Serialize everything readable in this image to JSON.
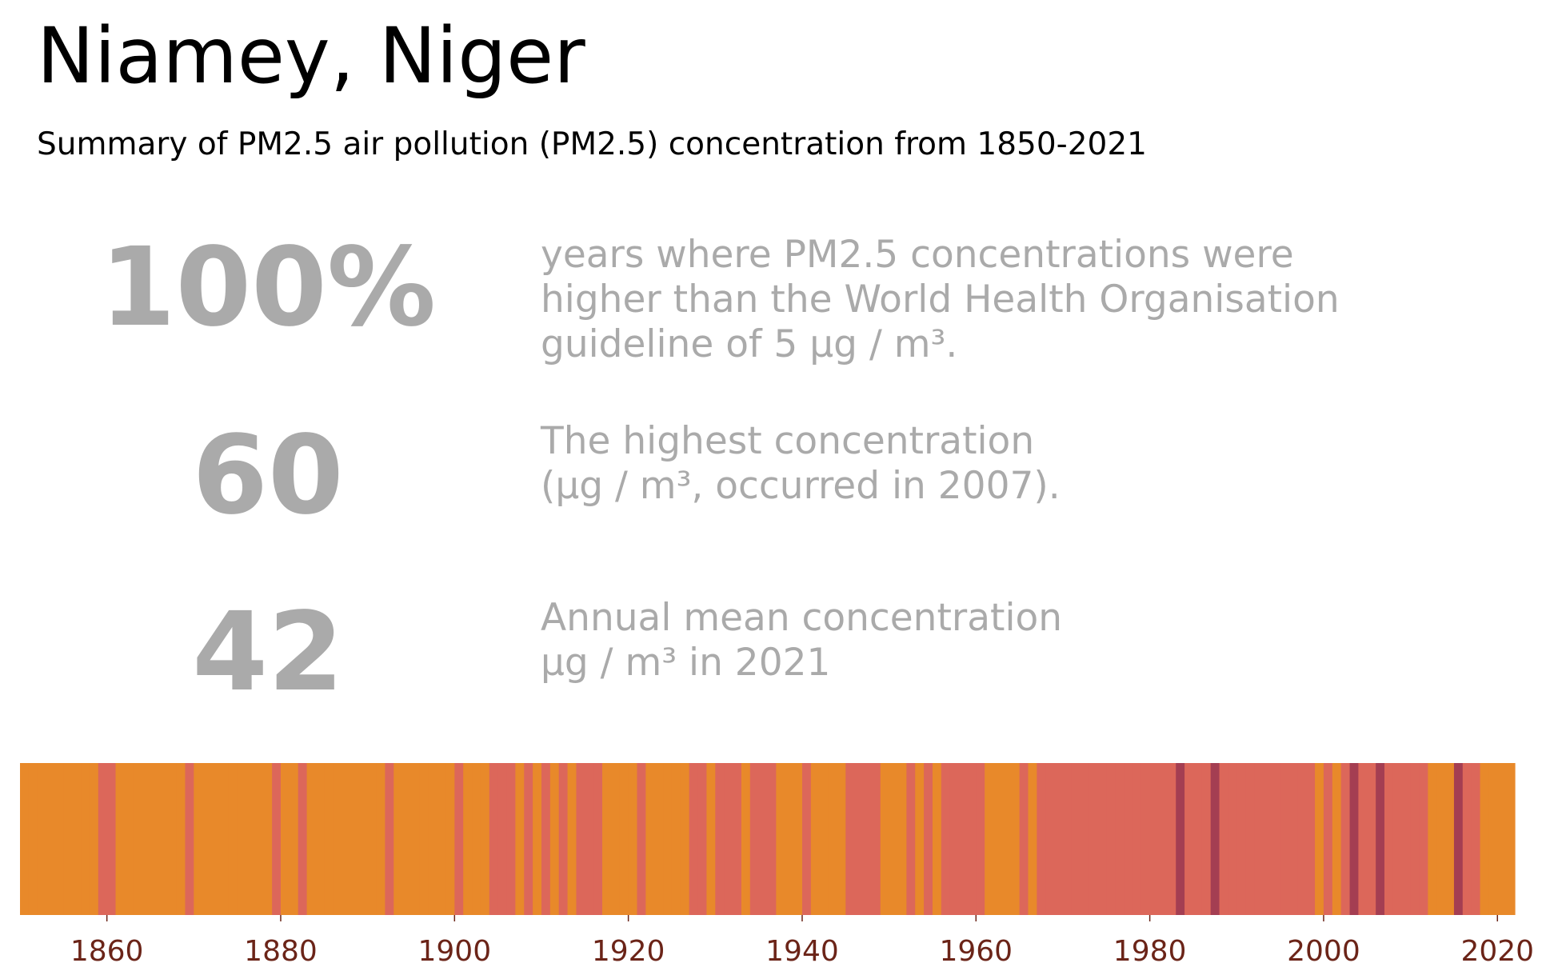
{
  "header": {
    "title": "Niamey, Niger",
    "subtitle": "Summary of PM2.5 air pollution (PM2.5) concentration from 1850-2021"
  },
  "stats": [
    {
      "value": "100%",
      "lines": [
        "years where PM2.5 concentrations were",
        "higher than the World Health Organisation",
        "guideline of 5 μg / m³."
      ]
    },
    {
      "value": "60",
      "lines": [
        "The highest concentration",
        "(μg / m³, occurred in 2007)."
      ]
    },
    {
      "value": "42",
      "lines": [
        "Annual mean concentration",
        "μg / m³ in 2021"
      ]
    }
  ],
  "colors": {
    "level_1": "#e8892a",
    "level_2": "#dc675a",
    "level_3": "#a43e52",
    "tick_label": "#6b2418",
    "stat_text": "#aaaaaa"
  },
  "chart_data": {
    "type": "heatmap",
    "x_start": 1850,
    "x_end": 2021,
    "xlim": [
      1850,
      2022
    ],
    "xticks": [
      1860,
      1880,
      1900,
      1920,
      1940,
      1960,
      1980,
      2000,
      2020
    ],
    "legend": "none",
    "grid": false,
    "levels": [
      1,
      1,
      1,
      1,
      1,
      1,
      1,
      1,
      1,
      2,
      2,
      1,
      1,
      1,
      1,
      1,
      1,
      1,
      1,
      2,
      1,
      1,
      1,
      1,
      1,
      1,
      1,
      1,
      1,
      2,
      1,
      1,
      2,
      1,
      1,
      1,
      1,
      1,
      1,
      1,
      1,
      1,
      2,
      1,
      1,
      1,
      1,
      1,
      1,
      1,
      2,
      1,
      1,
      1,
      2,
      2,
      2,
      1,
      2,
      1,
      2,
      1,
      2,
      1,
      2,
      2,
      2,
      1,
      1,
      1,
      1,
      2,
      1,
      1,
      1,
      1,
      1,
      2,
      2,
      1,
      2,
      2,
      2,
      1,
      2,
      2,
      2,
      1,
      1,
      1,
      2,
      1,
      1,
      1,
      1,
      2,
      2,
      2,
      2,
      1,
      1,
      1,
      2,
      1,
      2,
      1,
      2,
      2,
      2,
      2,
      2,
      1,
      1,
      1,
      1,
      2,
      1,
      2,
      2,
      2,
      2,
      2,
      2,
      2,
      2,
      2,
      2,
      2,
      2,
      2,
      2,
      2,
      2,
      3,
      2,
      2,
      2,
      3,
      2,
      2,
      2,
      2,
      2,
      2,
      2,
      2,
      2,
      2,
      2,
      1,
      2,
      1,
      2,
      3,
      2,
      2,
      3,
      2,
      2,
      2,
      2,
      2,
      1,
      1,
      1,
      3,
      2,
      2,
      1,
      1,
      1,
      1
    ]
  }
}
